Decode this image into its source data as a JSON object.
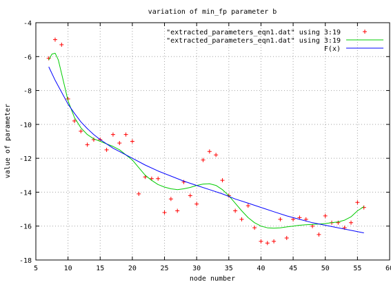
{
  "chart_data": {
    "type": "scatter",
    "title": "variation of min_fp parameter b",
    "xlabel": "node number",
    "ylabel": "value of parameter",
    "xlim": [
      5,
      60
    ],
    "ylim": [
      -18,
      -4
    ],
    "xticks": [
      5,
      10,
      15,
      20,
      25,
      30,
      35,
      40,
      45,
      50,
      55,
      60
    ],
    "yticks": [
      -18,
      -16,
      -14,
      -12,
      -10,
      -8,
      -6,
      -4
    ],
    "xtick_labels": [
      "5",
      "10",
      "15",
      "20",
      "25",
      "30",
      "35",
      "40",
      "45",
      "50",
      "55",
      "60"
    ],
    "ytick_labels": [
      "-18",
      "-16",
      "-14",
      "-12",
      "-10",
      "-8",
      "-6",
      "-4"
    ],
    "grid": true,
    "legend_position": "top-right",
    "series": [
      {
        "name": "\"extracted_parameters_eqn1.dat\" using 3:19",
        "kind": "points",
        "color": "#ff0000",
        "marker": "+",
        "x": [
          7,
          8,
          9,
          10,
          11,
          12,
          13,
          14,
          15,
          16,
          17,
          18,
          19,
          20,
          21,
          22,
          23,
          24,
          25,
          26,
          27,
          28,
          29,
          30,
          31,
          32,
          33,
          34,
          35,
          36,
          37,
          38,
          39,
          40,
          41,
          42,
          43,
          44,
          45,
          46,
          47,
          48,
          49,
          50,
          51,
          52,
          53,
          54,
          55,
          56
        ],
        "y": [
          -6.1,
          -5.0,
          -5.3,
          -8.5,
          -9.8,
          -10.4,
          -11.2,
          -10.9,
          -10.9,
          -11.5,
          -10.6,
          -11.1,
          -10.6,
          -11.0,
          -14.1,
          -13.1,
          -13.2,
          -13.2,
          -15.2,
          -14.4,
          -15.1,
          -13.4,
          -14.2,
          -14.7,
          -12.1,
          -11.6,
          -11.8,
          -13.3,
          -14.2,
          -15.1,
          -15.6,
          -14.8,
          -16.1,
          -16.9,
          -17.0,
          -16.9,
          -15.6,
          -16.7,
          -15.6,
          -15.5,
          -15.6,
          -16.0,
          -16.5,
          -15.4,
          -15.8,
          -15.8,
          -16.1,
          -15.8,
          -14.6,
          -14.9
        ]
      },
      {
        "name": "\"extracted_parameters_eqn1.dat\" using 3:19",
        "kind": "smooth",
        "color": "#00cc00",
        "x": [
          7,
          7.5,
          8,
          8.5,
          9,
          9.5,
          10,
          11,
          12,
          13,
          14,
          15,
          16,
          17,
          18,
          19,
          20,
          21,
          22,
          23,
          24,
          25,
          26,
          27,
          28,
          29,
          30,
          31,
          32,
          33,
          34,
          35,
          36,
          37,
          38,
          39,
          40,
          41,
          42,
          43,
          44,
          45,
          46,
          47,
          48,
          49,
          50,
          51,
          52,
          53,
          54,
          55,
          56
        ],
        "y": [
          -6.2,
          -5.85,
          -5.8,
          -6.2,
          -7.0,
          -7.8,
          -8.6,
          -9.6,
          -10.2,
          -10.6,
          -10.85,
          -11.0,
          -11.15,
          -11.3,
          -11.5,
          -11.8,
          -12.1,
          -12.55,
          -13.0,
          -13.3,
          -13.55,
          -13.7,
          -13.8,
          -13.85,
          -13.8,
          -13.72,
          -13.6,
          -13.52,
          -13.5,
          -13.6,
          -13.85,
          -14.2,
          -14.65,
          -15.1,
          -15.5,
          -15.8,
          -16.0,
          -16.1,
          -16.12,
          -16.1,
          -16.05,
          -16.0,
          -15.95,
          -15.92,
          -15.9,
          -15.88,
          -15.85,
          -15.8,
          -15.75,
          -15.65,
          -15.45,
          -15.1,
          -14.85
        ]
      },
      {
        "name": "F(x)",
        "kind": "line",
        "color": "#0000ff",
        "x": [
          7,
          8,
          9,
          10,
          11,
          12,
          13,
          14,
          15,
          16,
          17,
          18,
          19,
          20,
          22,
          24,
          26,
          28,
          30,
          32,
          34,
          36,
          38,
          40,
          42,
          44,
          46,
          48,
          50,
          52,
          54,
          56
        ],
        "y": [
          -6.6,
          -7.4,
          -8.1,
          -8.8,
          -9.35,
          -9.85,
          -10.25,
          -10.6,
          -10.9,
          -11.15,
          -11.4,
          -11.6,
          -11.8,
          -12.0,
          -12.4,
          -12.75,
          -13.05,
          -13.35,
          -13.6,
          -13.85,
          -14.1,
          -14.4,
          -14.65,
          -14.9,
          -15.15,
          -15.4,
          -15.6,
          -15.8,
          -15.95,
          -16.1,
          -16.25,
          -16.4
        ]
      }
    ]
  }
}
